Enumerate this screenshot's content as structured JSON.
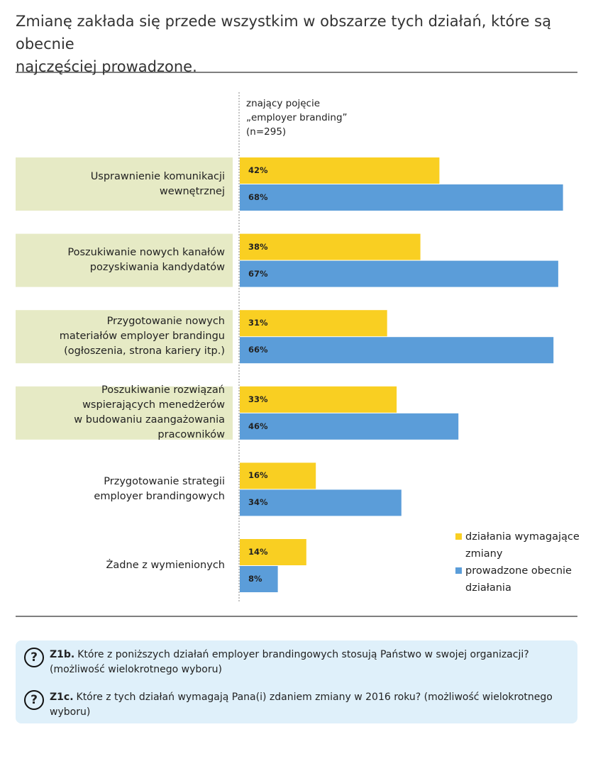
{
  "chart_data": {
    "type": "bar",
    "orientation": "horizontal",
    "title": "Zmianę zakłada się przede wszystkim w obszarze tych działań, które są obecnie\nnajczęściej prowadzone.",
    "subtitle": "znający pojęcie\n„employer branding”\n(n=295)",
    "categories": [
      "Usprawnienie komunikacji\nwewnętrznej",
      "Poszukiwanie nowych kanałów\npozyskiwania kandydatów",
      "Przygotowanie nowych\nmateriałów employer brandingu\n(ogłoszenia, strona kariery itp.)",
      "Poszukiwanie rozwiązań\nwspierających menedżerów\nw budowaniu zaangażowania\npracowników",
      "Przygotowanie strategii\nemployer brandingowych",
      "Żadne z wymienionych"
    ],
    "highlighted": [
      true,
      true,
      true,
      true,
      false,
      false
    ],
    "series": [
      {
        "name": "działania wymagające zmiany",
        "color": "#f9cf22",
        "values": [
          42,
          38,
          31,
          33,
          16,
          14
        ],
        "value_labels": [
          "42%",
          "38%",
          "31%",
          "33%",
          "16%",
          "14%"
        ]
      },
      {
        "name": "prowadzone obecnie działania",
        "color": "#5b9dd9",
        "values": [
          68,
          67,
          66,
          46,
          34,
          8
        ],
        "value_labels": [
          "68%",
          "67%",
          "66%",
          "46%",
          "34%",
          "8%"
        ]
      }
    ],
    "xlim": [
      0,
      70
    ]
  },
  "questions": [
    {
      "code": "Z1b.",
      "text": "Które z poniższych działań employer brandingowych stosują Państwo w swojej organizacji? (możliwość wielokrotnego wyboru)"
    },
    {
      "code": "Z1c.",
      "text": "Które z tych działań wymagają Pana(i) zdaniem zmiany w 2016 roku? (możliwość wielokrotnego wyboru)"
    }
  ]
}
